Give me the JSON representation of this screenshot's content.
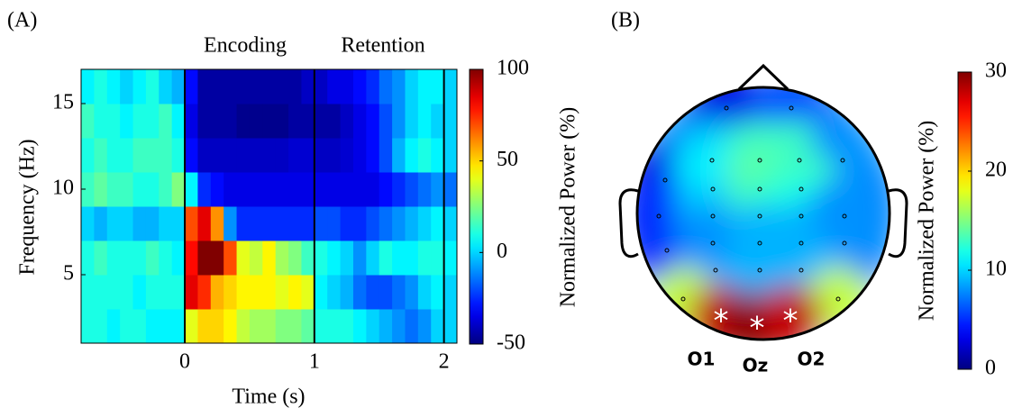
{
  "chart_data": [
    {
      "type": "heatmap",
      "label": "(A)",
      "annotations": [
        "Encoding",
        "Retention"
      ],
      "xlabel": "Time (s)",
      "ylabel": "Frequency (Hz)",
      "x": [
        -0.75,
        -0.65,
        -0.55,
        -0.45,
        -0.35,
        -0.25,
        -0.15,
        -0.05,
        0.05,
        0.15,
        0.25,
        0.35,
        0.45,
        0.55,
        0.65,
        0.75,
        0.85,
        0.95,
        1.05,
        1.15,
        1.25,
        1.35,
        1.45,
        1.55,
        1.65,
        1.75,
        1.85,
        1.95,
        2.05
      ],
      "y": [
        2,
        4,
        6,
        8,
        10,
        12,
        14,
        16
      ],
      "z": [
        [
          10,
          10,
          5,
          10,
          10,
          5,
          5,
          5,
          40,
          50,
          50,
          45,
          35,
          30,
          30,
          25,
          25,
          20,
          10,
          10,
          10,
          5,
          0,
          -5,
          -10,
          -15,
          -10,
          0,
          0
        ],
        [
          10,
          10,
          10,
          10,
          5,
          10,
          10,
          10,
          85,
          75,
          55,
          50,
          45,
          45,
          45,
          40,
          45,
          40,
          5,
          0,
          -5,
          -15,
          -20,
          -20,
          -15,
          -10,
          0,
          5,
          0
        ],
        [
          10,
          15,
          10,
          10,
          10,
          15,
          10,
          5,
          80,
          100,
          100,
          70,
          40,
          35,
          45,
          30,
          25,
          15,
          10,
          5,
          0,
          -10,
          0,
          10,
          5,
          5,
          10,
          10,
          5
        ],
        [
          0,
          -5,
          0,
          0,
          -5,
          -5,
          0,
          0,
          70,
          85,
          60,
          -10,
          -25,
          -25,
          -25,
          -25,
          -25,
          -25,
          -20,
          -20,
          -25,
          -25,
          -20,
          -15,
          -10,
          -5,
          0,
          5,
          0
        ],
        [
          15,
          20,
          15,
          15,
          10,
          10,
          15,
          25,
          5,
          -25,
          -30,
          -35,
          -35,
          -35,
          -35,
          -35,
          -35,
          -35,
          -35,
          -35,
          -35,
          -35,
          -35,
          -30,
          -25,
          -20,
          -15,
          -10,
          -15
        ],
        [
          10,
          15,
          10,
          10,
          15,
          15,
          15,
          10,
          -30,
          -40,
          -40,
          -40,
          -40,
          -40,
          -40,
          -40,
          -38,
          -38,
          -40,
          -40,
          -38,
          -35,
          -30,
          -20,
          -5,
          5,
          10,
          5,
          0
        ],
        [
          15,
          10,
          10,
          5,
          10,
          10,
          15,
          5,
          -35,
          -45,
          -45,
          -45,
          -48,
          -48,
          -48,
          -48,
          -45,
          -45,
          -45,
          -45,
          -40,
          -35,
          -30,
          -20,
          -10,
          0,
          5,
          0,
          0
        ],
        [
          5,
          10,
          5,
          0,
          5,
          10,
          0,
          -5,
          -30,
          -45,
          -45,
          -45,
          -45,
          -45,
          -45,
          -45,
          -45,
          -40,
          -40,
          -35,
          -35,
          -30,
          -25,
          -15,
          -10,
          0,
          5,
          5,
          0
        ]
      ],
      "xlim": [
        -0.8,
        2.1
      ],
      "ylim": [
        1,
        17
      ],
      "xticks": [
        0,
        1,
        2
      ],
      "yticks": [
        5,
        10,
        15
      ],
      "vlines": [
        0,
        1,
        2
      ],
      "colorbar": {
        "label": "Normalized Power (%)",
        "colormap": "jet",
        "lim": [
          -50,
          100
        ],
        "ticks": [
          -50,
          0,
          50,
          100
        ]
      }
    },
    {
      "type": "topomap",
      "label": "(B)",
      "electrodes": [
        {
          "value": 3
        },
        {
          "value": 6
        },
        {
          "value": 3
        },
        {
          "value": 10
        },
        {
          "value": 13
        },
        {
          "value": 13
        },
        {
          "value": 8
        },
        {
          "value": 11
        },
        {
          "value": 14
        },
        {
          "value": 13
        },
        {
          "value": 5
        },
        {
          "value": 10
        },
        {
          "value": 13
        },
        {
          "value": 12
        },
        {
          "value": 8
        },
        {
          "value": 5
        },
        {
          "value": 8
        },
        {
          "value": 9
        },
        {
          "value": 9
        },
        {
          "value": 8
        },
        {
          "value": 8
        },
        {
          "value": 9
        },
        {
          "value": 9
        },
        {
          "value": 17
        },
        {
          "value": 17
        },
        {
          "label": "O1",
          "value": 28,
          "marker": "*"
        },
        {
          "label": "Oz",
          "value": 30,
          "marker": "*"
        },
        {
          "label": "O2",
          "value": 28,
          "marker": "*"
        }
      ],
      "colorbar": {
        "label": "Normalized Power (%)",
        "colormap": "jet",
        "lim": [
          0,
          30
        ],
        "ticks": [
          0,
          10,
          20,
          30
        ]
      }
    }
  ]
}
